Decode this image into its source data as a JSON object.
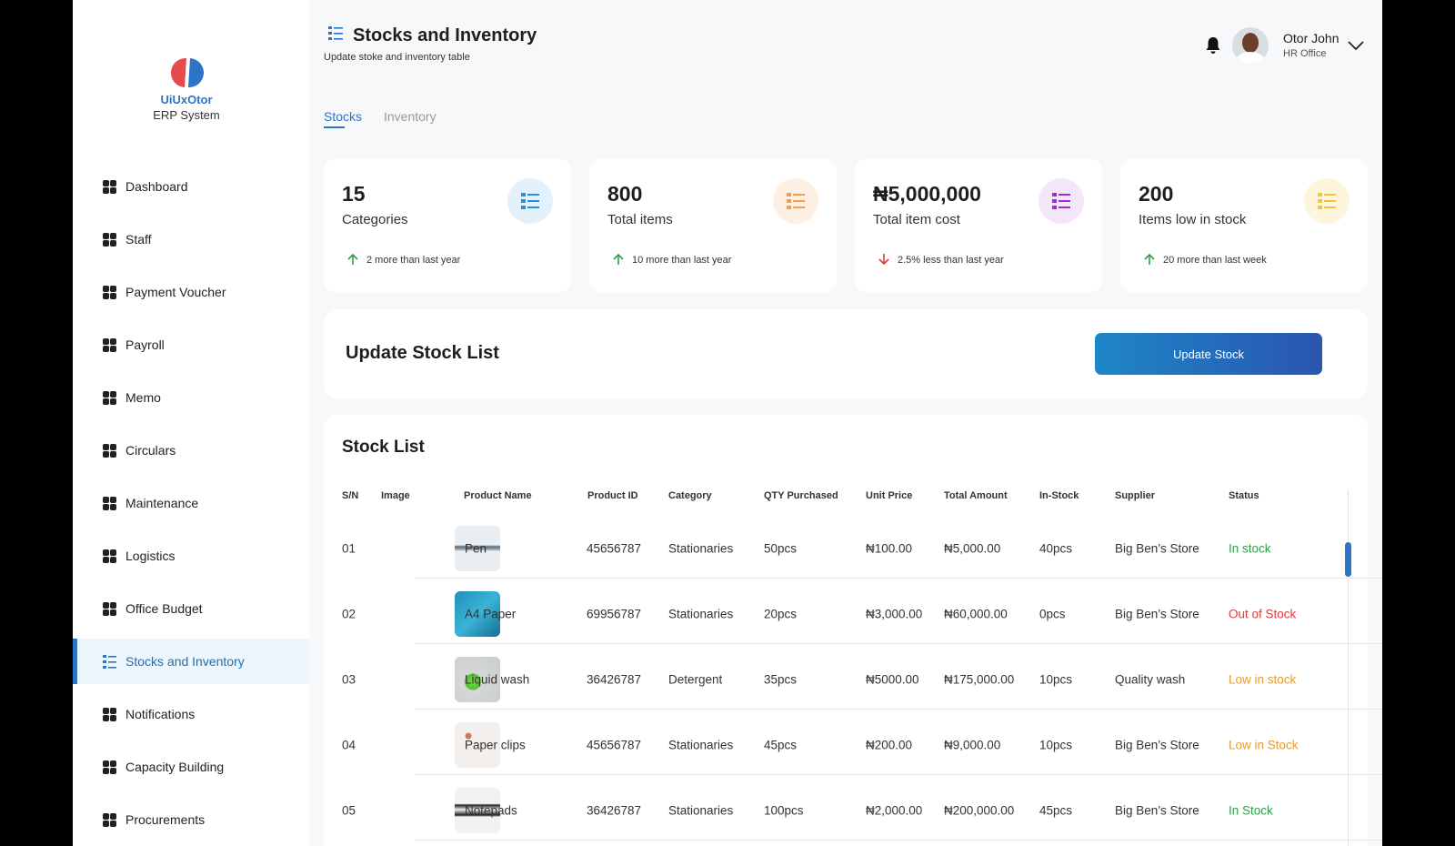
{
  "sidebar": {
    "brand": "UiUxOtor",
    "subtitle": "ERP System",
    "menu": [
      "Dashboard",
      "Staff",
      "Payment Voucher",
      "Payroll",
      "Memo",
      "Circulars",
      "Maintenance",
      "Logistics",
      "Office Budget",
      "Stocks and Inventory",
      "Notifications",
      "Capacity Building",
      "Procurements"
    ]
  },
  "header": {
    "title": "Stocks and Inventory",
    "subtitle": "Update stoke and inventory table",
    "user": "Otor John",
    "role": "HR Office"
  },
  "tabs": [
    "Stocks",
    "Inventory"
  ],
  "cards": [
    {
      "value": "15",
      "label": "Categories",
      "note": "2 more than last year"
    },
    {
      "value": "800",
      "label": "Total items",
      "note": "10 more than last year"
    },
    {
      "value": "₦5,000,000",
      "label": "Total item cost",
      "note": "2.5% less than last year"
    },
    {
      "value": "200",
      "label": "Items low in stock",
      "note": "20 more than last week"
    }
  ],
  "update": {
    "title": "Update Stock List",
    "button": "Update Stock"
  },
  "table": {
    "title": "Stock List",
    "headers": [
      "S/N",
      "Image",
      "Product Name",
      "Product ID",
      "Category",
      "QTY Purchased",
      "Unit Price",
      "Total Amount",
      "In-Stock",
      "Supplier",
      "Status"
    ],
    "rows": [
      [
        "01",
        "Pen",
        "45656787",
        "Stationaries",
        "50pcs",
        "₦100.00",
        "₦5,000.00",
        "40pcs",
        "Big Ben’s Store",
        "In stock"
      ],
      [
        "02",
        "A4 Paper",
        "69956787",
        "Stationaries",
        "20pcs",
        "₦3,000.00",
        "₦60,000.00",
        "0pcs",
        "Big Ben’s Store",
        "Out of Stock"
      ],
      [
        "03",
        "Liquid wash",
        "36426787",
        "Detergent",
        "35pcs",
        "₦5000.00",
        "₦175,000.00",
        "10pcs",
        "Quality wash",
        "Low in stock"
      ],
      [
        "04",
        "Paper clips",
        "45656787",
        "Stationaries",
        "45pcs",
        "₦200.00",
        "₦9,000.00",
        "10pcs",
        "Big Ben’s Store",
        "Low in Stock"
      ],
      [
        "05",
        "Notepads",
        "36426787",
        "Stationaries",
        "100pcs",
        "₦2,000.00",
        "₦200,000.00",
        "45pcs",
        "Big Ben’s Store",
        "In Stock"
      ]
    ]
  }
}
